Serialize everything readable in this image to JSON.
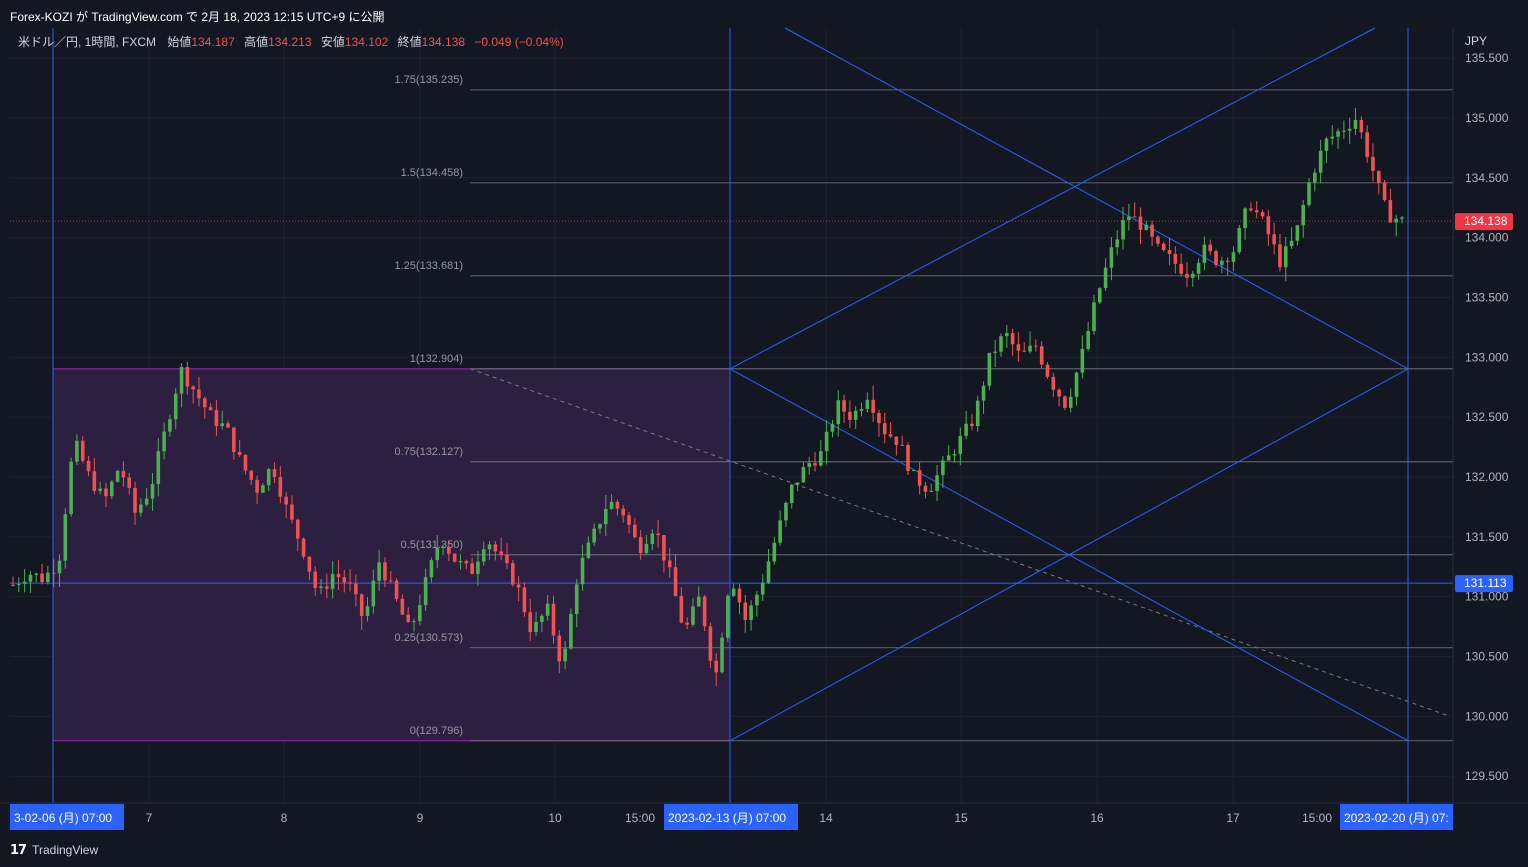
{
  "header": {
    "published": "Forex-KOZI が TradingView.com で 2月 18, 2023 12:15 UTC+9 に公開"
  },
  "legend": {
    "symbol": "米ドル／円, 1時間, FXCM",
    "open_label": "始値",
    "open": "134.187",
    "high_label": "高値",
    "high": "134.213",
    "low_label": "安値",
    "low": "134.102",
    "close_label": "終値",
    "close": "134.138",
    "change": "−0.049 (−0.04%)"
  },
  "footer": {
    "brand": "TradingView"
  },
  "colors": {
    "background": "#131722",
    "grid": "#1e222d",
    "up": "#26a69a",
    "up_candle": "#4caf50",
    "down_candle": "#ef5350",
    "fib_zone": "#2d1f3f",
    "fib_border": "#9c27b0",
    "line_blue": "#2962ff",
    "price_tag": "#f23645",
    "level_tag": "#2962ff"
  },
  "chart_data": {
    "type": "candlestick",
    "symbol": "USDJPY",
    "interval": "1h",
    "currency": "JPY",
    "y_axis_ticks": [
      "135.500",
      "135.000",
      "134.500",
      "134.000",
      "133.500",
      "133.000",
      "132.500",
      "132.000",
      "131.500",
      "131.000",
      "130.500",
      "130.000",
      "129.500"
    ],
    "ylim": [
      129.3,
      135.75
    ],
    "x_axis_labels": [
      {
        "text": "3-02-06 (月)  07:00",
        "highlight": true
      },
      {
        "text": "7",
        "highlight": false
      },
      {
        "text": "8",
        "highlight": false
      },
      {
        "text": "9",
        "highlight": false
      },
      {
        "text": "10",
        "highlight": false
      },
      {
        "text": "15:00",
        "highlight": false
      },
      {
        "text": "2023-02-13 (月)  07:00",
        "highlight": true
      },
      {
        "text": "14",
        "highlight": false
      },
      {
        "text": "15",
        "highlight": false
      },
      {
        "text": "16",
        "highlight": false
      },
      {
        "text": "17",
        "highlight": false
      },
      {
        "text": "15:00",
        "highlight": false
      },
      {
        "text": "2023-02-20 (月)  07:",
        "highlight": true
      }
    ],
    "current_price": "134.138",
    "level_price": "131.113",
    "fib_levels": [
      {
        "label": "1.75(135.235)",
        "value": 135.235
      },
      {
        "label": "1.5(134.458)",
        "value": 134.458
      },
      {
        "label": "1.25(133.681)",
        "value": 133.681
      },
      {
        "label": "1(132.904)",
        "value": 132.904
      },
      {
        "label": "0.75(132.127)",
        "value": 132.127
      },
      {
        "label": "0.5(131.350)",
        "value": 131.35
      },
      {
        "label": "0.25(130.573)",
        "value": 130.573
      },
      {
        "label": "0(129.796)",
        "value": 129.796
      }
    ],
    "price_path": [
      131.1,
      131.2,
      131.15,
      131.3,
      132.3,
      132.0,
      131.8,
      132.1,
      131.7,
      131.9,
      132.4,
      132.9,
      132.7,
      132.5,
      132.4,
      132.1,
      131.9,
      132.1,
      131.7,
      131.4,
      131.0,
      131.2,
      131.1,
      130.8,
      131.3,
      131.0,
      130.7,
      131.1,
      131.5,
      131.3,
      131.2,
      131.5,
      131.3,
      131.1,
      130.7,
      130.9,
      130.4,
      131.2,
      131.5,
      131.8,
      131.7,
      131.4,
      131.6,
      131.2,
      130.7,
      131.0,
      130.3,
      131.2,
      130.8,
      131.1,
      131.5,
      131.9,
      132.1,
      132.2,
      132.6,
      132.5,
      132.7,
      132.4,
      132.3,
      132.0,
      131.9,
      132.1,
      132.3,
      132.5,
      133.0,
      133.2,
      133.0,
      133.1,
      132.8,
      132.6,
      133.0,
      133.5,
      133.9,
      134.2,
      134.1,
      133.9,
      133.8,
      133.7,
      133.9,
      133.8,
      133.9,
      134.3,
      134.1,
      133.8,
      134.0,
      134.5,
      134.8,
      134.9,
      135.0,
      134.6,
      134.2,
      134.138
    ],
    "box": {
      "from_price": 129.796,
      "to_price": 132.904,
      "from_date": "2023-02-06 07:00",
      "to_date": "2023-02-13 07:00"
    }
  }
}
